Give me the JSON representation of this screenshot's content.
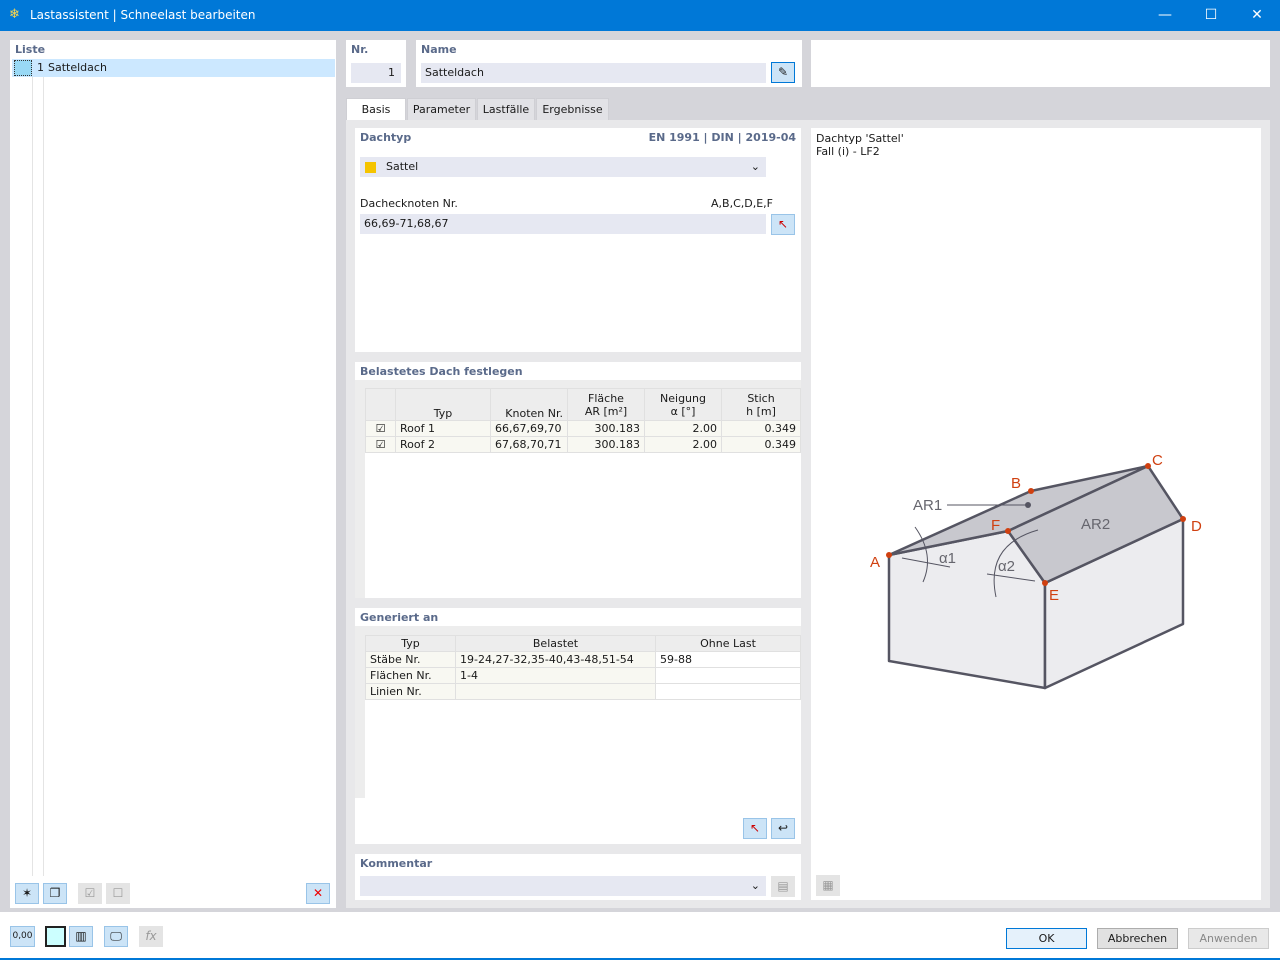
{
  "window": {
    "title": "Lastassistent | Schneelast bearbeiten",
    "icon": "snow-load-icon",
    "accent": "#0078d7"
  },
  "list": {
    "header": "Liste",
    "items": [
      {
        "nr": "1",
        "name": "Satteldach",
        "color": "#99d9f5"
      }
    ]
  },
  "nr": {
    "label": "Nr.",
    "value": "1"
  },
  "name": {
    "label": "Name",
    "value": "Satteldach"
  },
  "tabs": [
    {
      "label": "Basis",
      "active": true
    },
    {
      "label": "Parameter"
    },
    {
      "label": "Lastfälle"
    },
    {
      "label": "Ergebnisse"
    }
  ],
  "dachtyp": {
    "title": "Dachtyp",
    "norm": "EN 1991 | DIN | 2019-04",
    "selected": "Sattel",
    "swatch": "#f5c400",
    "nodes_label": "Dachecknoten Nr.",
    "nodes_hint": "A,B,C,D,E,F",
    "nodes_value": "66,69-71,68,67"
  },
  "belastet": {
    "title": "Belastetes Dach festlegen",
    "headers": [
      [
        "",
        "Typ"
      ],
      [
        "",
        "Knoten Nr."
      ],
      [
        "Fläche",
        "AR [m²]"
      ],
      [
        "Neigung",
        "α [°]"
      ],
      [
        "Stich",
        "h [m]"
      ]
    ],
    "rows": [
      {
        "checked": true,
        "typ": "Roof 1",
        "knoten": "66,67,69,70",
        "flaeche": "300.183",
        "neigung": "2.00",
        "stich": "0.349"
      },
      {
        "checked": true,
        "typ": "Roof 2",
        "knoten": "67,68,70,71",
        "flaeche": "300.183",
        "neigung": "2.00",
        "stich": "0.349"
      }
    ]
  },
  "generiert": {
    "title": "Generiert an",
    "headers": [
      "Typ",
      "Belastet",
      "Ohne Last"
    ],
    "rows": [
      {
        "typ": "Stäbe Nr.",
        "belastet": "19-24,27-32,35-40,43-48,51-54",
        "ohne": "59-88"
      },
      {
        "typ": "Flächen Nr.",
        "belastet": "1-4",
        "ohne": ""
      },
      {
        "typ": "Linien Nr.",
        "belastet": "",
        "ohne": ""
      }
    ]
  },
  "kommentar": {
    "title": "Kommentar",
    "value": ""
  },
  "preview": {
    "line1": "Dachtyp 'Sattel'",
    "line2": "Fall (i) - LF2",
    "labels": {
      "A": "A",
      "B": "B",
      "C": "C",
      "D": "D",
      "E": "E",
      "F": "F",
      "AR1": "AR1",
      "AR2": "AR2",
      "a1": "α1",
      "a2": "α2"
    }
  },
  "buttons": {
    "ok": "OK",
    "cancel": "Abbrechen",
    "apply": "Anwenden",
    "units": "0,00"
  }
}
